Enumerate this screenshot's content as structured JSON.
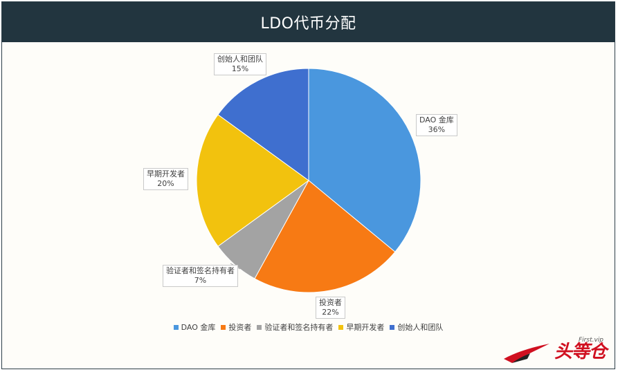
{
  "title": "LDO代币分配",
  "chart_data": {
    "type": "pie",
    "title": "LDO代币分配",
    "slices": [
      {
        "name": "DAO 金库",
        "value": 36,
        "label": "36%",
        "color": "#4a97de"
      },
      {
        "name": "投资者",
        "value": 22,
        "label": "22%",
        "color": "#f77a14"
      },
      {
        "name": "验证者和签名持有者",
        "value": 7,
        "label": "7%",
        "color": "#a3a3a3"
      },
      {
        "name": "早期开发者",
        "value": 20,
        "label": "20%",
        "color": "#f2c20e"
      },
      {
        "name": "创始人和团队",
        "value": 15,
        "label": "15%",
        "color": "#3f6fcf"
      }
    ],
    "legend_position": "bottom"
  },
  "logo": {
    "text": "头等仓",
    "subtext": "First.vip"
  }
}
